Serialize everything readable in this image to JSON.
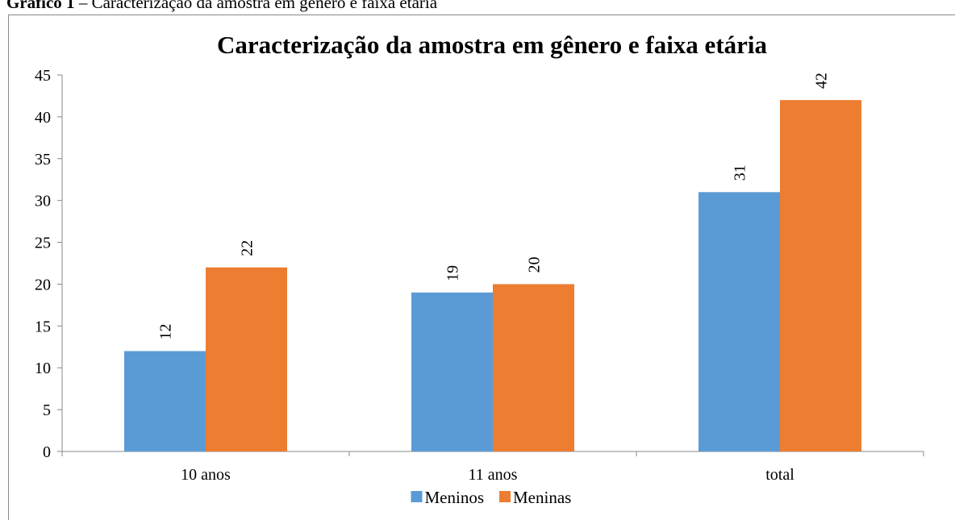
{
  "caption_label": "Gráfico 1",
  "caption_text": "– Caracterização da amostra em gênero e faixa etária",
  "chart_data": {
    "type": "bar",
    "title": "Caracterização da amostra em gênero e faixa etária",
    "categories": [
      "10 anos",
      "11 anos",
      "total"
    ],
    "series": [
      {
        "name": "Meninos",
        "color": "#5b9bd5",
        "values": [
          12,
          19,
          31
        ]
      },
      {
        "name": "Meninas",
        "color": "#ed7d31",
        "values": [
          22,
          20,
          42
        ]
      }
    ],
    "ylim": [
      0,
      45
    ],
    "yticks": [
      0,
      5,
      10,
      15,
      20,
      25,
      30,
      35,
      40,
      45
    ],
    "grid": false,
    "legend": "bottom"
  }
}
